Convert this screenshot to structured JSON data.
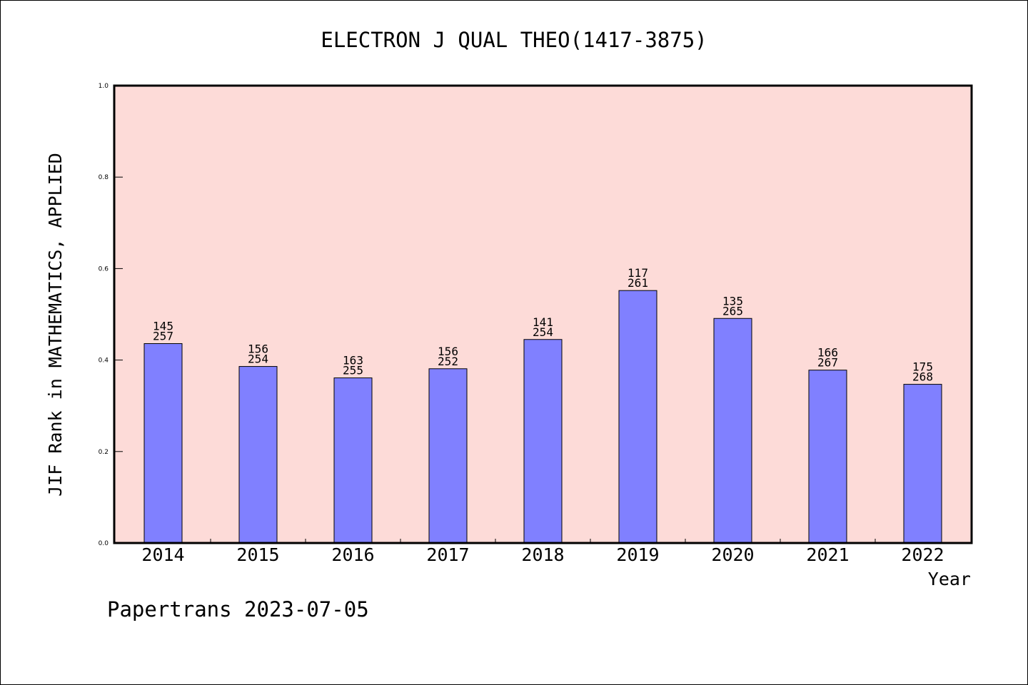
{
  "chart_data": {
    "type": "bar",
    "title": "ELECTRON J QUAL THEO(1417-3875)",
    "xlabel": "Year",
    "ylabel": "JIF Rank in MATHEMATICS, APPLIED",
    "ylim": [
      0,
      1.0
    ],
    "yticks": [
      "0.0",
      "0.2",
      "0.4",
      "0.6",
      "0.8",
      "1.0"
    ],
    "categories": [
      "2014",
      "2015",
      "2016",
      "2017",
      "2018",
      "2019",
      "2020",
      "2021",
      "2022"
    ],
    "values": [
      0.436,
      0.386,
      0.361,
      0.381,
      0.445,
      0.552,
      0.491,
      0.378,
      0.347
    ],
    "rank": [
      "145",
      "156",
      "163",
      "156",
      "141",
      "117",
      "135",
      "166",
      "175"
    ],
    "total": [
      "257",
      "254",
      "255",
      "252",
      "254",
      "261",
      "265",
      "267",
      "268"
    ],
    "grid": false,
    "legend": "none",
    "colors": {
      "plot_bg": "#fddbd8",
      "bar": "#8080ff",
      "axis": "#000000"
    }
  },
  "footer": {
    "text": "Papertrans 2023-07-05"
  }
}
